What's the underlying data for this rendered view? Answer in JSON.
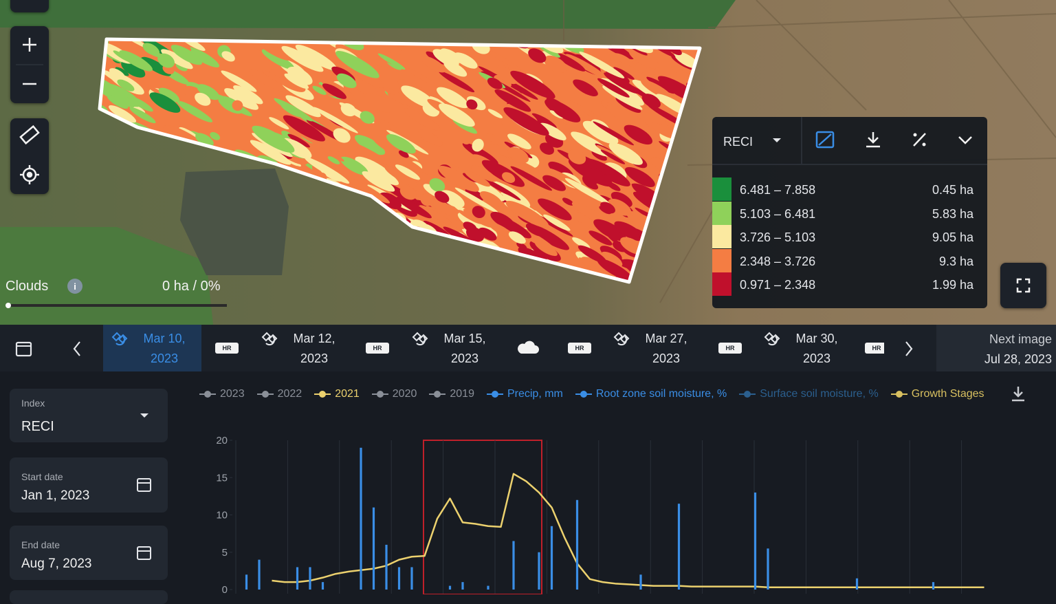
{
  "map": {
    "clouds_label": "Clouds",
    "clouds_value": "0 ha / 0%"
  },
  "map_legend": {
    "index": "RECI",
    "rows": [
      {
        "range": "6.481 – 7.858",
        "area": "0.45 ha",
        "color": "#1a8f3c"
      },
      {
        "range": "5.103 – 6.481",
        "area": "5.83 ha",
        "color": "#8fd15a"
      },
      {
        "range": "3.726 – 5.103",
        "area": "9.05 ha",
        "color": "#fbe9a0"
      },
      {
        "range": "2.348 – 3.726",
        "area": "9.3 ha",
        "color": "#f47d43"
      },
      {
        "range": "0.971 – 2.348",
        "area": "1.99 ha",
        "color": "#c0102c"
      }
    ]
  },
  "timeline": {
    "items": [
      {
        "date": [
          "Mar 10,",
          "2023"
        ],
        "badge": "HR"
      },
      {
        "date": [
          "Mar 12,",
          "2023"
        ],
        "badge": "HR"
      },
      {
        "date": [
          "Mar 15,",
          "2023"
        ],
        "badge": "HR"
      },
      {
        "date": [
          "Mar 27,",
          "2023"
        ],
        "badge": "HR"
      },
      {
        "date": [
          "Mar 30,",
          "2023"
        ],
        "badge": "HR"
      }
    ],
    "next": {
      "label": "Next image",
      "date": "Jul 28, 2023"
    }
  },
  "sidebar": {
    "index": {
      "label": "Index",
      "value": "RECI"
    },
    "start": {
      "label": "Start date",
      "value": "Jan 1, 2023"
    },
    "end": {
      "label": "End date",
      "value": "Aug 7, 2023"
    }
  },
  "chart_data": {
    "type": "bar",
    "categories": [
      null,
      null,
      null,
      null,
      null,
      null,
      null,
      null,
      null,
      null,
      null,
      null,
      null,
      null,
      null,
      null,
      null,
      null,
      null,
      null,
      null,
      null,
      null,
      null,
      null,
      null,
      null,
      null,
      null,
      null,
      null,
      null,
      null,
      null,
      null,
      null,
      null,
      null,
      null,
      null,
      null,
      null,
      null,
      null,
      null,
      null,
      null,
      null,
      null,
      null,
      null,
      null,
      null,
      null,
      null,
      null,
      null,
      null,
      null,
      null
    ],
    "ylim": [
      0,
      20
    ],
    "yticks": [
      0,
      5,
      10,
      15,
      20
    ],
    "series": [
      {
        "name": "2023",
        "color": "#8a8f98"
      },
      {
        "name": "2022",
        "color": "#8a8f98"
      },
      {
        "name": "2021",
        "color": "#ecd16e",
        "type": "line",
        "values": [
          null,
          null,
          null,
          1.2,
          1.0,
          1.0,
          1.2,
          1.6,
          2.1,
          2.4,
          2.6,
          2.8,
          3.2,
          4.0,
          4.4,
          4.5,
          9.5,
          12.2,
          9.0,
          8.8,
          8.5,
          8.4,
          15.5,
          14.5,
          13,
          11,
          7,
          3.5,
          1.4,
          1.0,
          0.8,
          0.7,
          0.6,
          0.5,
          0.5,
          0.5,
          0.4,
          0.4,
          0.4,
          0.4,
          0.4,
          0.4,
          0.3,
          0.3,
          0.3,
          0.3,
          0.3,
          0.3,
          0.3,
          0.3,
          0.3,
          0.3,
          0.3,
          0.3,
          0.3,
          0.3,
          0.3,
          0.3,
          0.3,
          0.3
        ]
      },
      {
        "name": "2020",
        "color": "#8a8f98"
      },
      {
        "name": "2019",
        "color": "#8a8f98"
      },
      {
        "name": "Precip, mm",
        "color": "#3a8ee6",
        "type": "bar",
        "values": [
          0,
          2,
          4,
          0,
          0,
          3,
          3,
          1,
          0,
          0,
          19,
          11,
          6,
          3,
          3,
          0,
          0,
          0.5,
          1,
          0,
          0.5,
          0,
          6.5,
          0,
          5,
          8.5,
          0,
          12,
          0,
          0,
          0,
          0,
          2,
          0,
          0,
          11.5,
          0,
          0,
          0,
          0,
          0,
          13,
          5.5,
          0,
          0,
          0,
          0,
          0,
          0,
          1.5,
          0,
          0,
          0,
          0,
          0,
          1,
          0,
          0,
          0,
          0
        ]
      },
      {
        "name": "Root zone soil moisture, %",
        "color": "#3a8ee6"
      },
      {
        "name": "Surface soil moisture, %",
        "color": "#2b5f8e"
      },
      {
        "name": "Growth Stages",
        "color": "#d8c060"
      }
    ]
  }
}
